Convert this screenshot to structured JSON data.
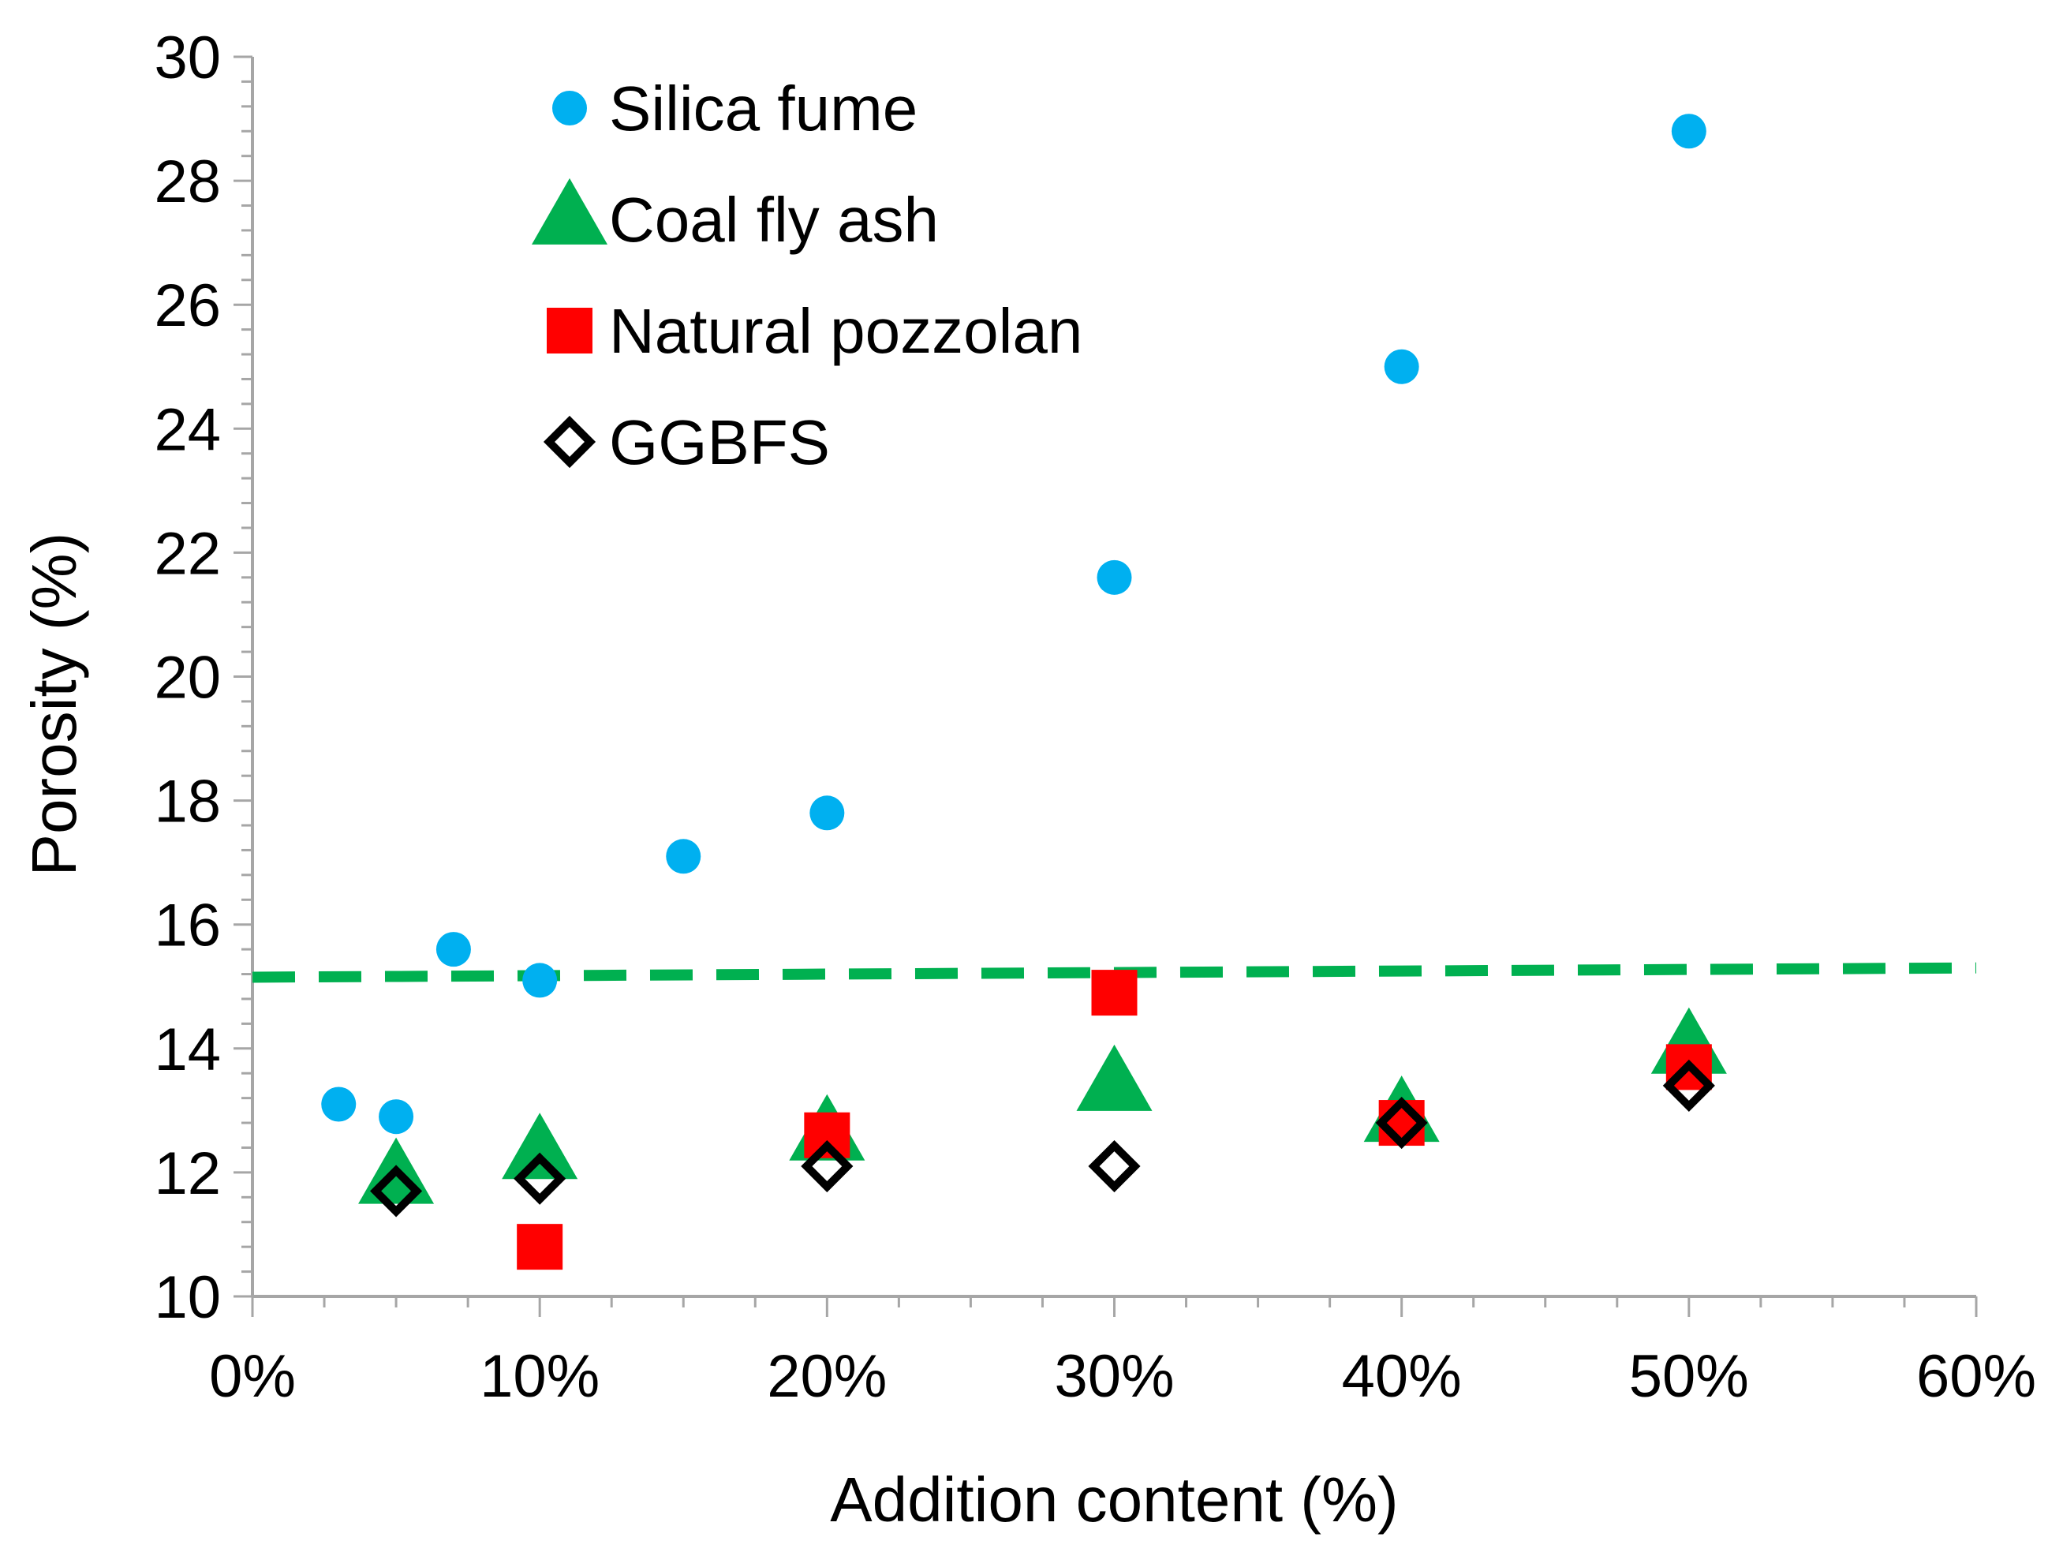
{
  "chart_data": {
    "type": "scatter",
    "title": "",
    "xlabel": "Addition content (%)",
    "ylabel": "Porosity (%)",
    "xlim": [
      0,
      60
    ],
    "ylim": [
      10,
      30
    ],
    "x_ticks": [
      0,
      10,
      20,
      30,
      40,
      50,
      60
    ],
    "x_tick_labels": [
      "0%",
      "10%",
      "20%",
      "30%",
      "40%",
      "50%",
      "60%"
    ],
    "y_ticks": [
      10,
      12,
      14,
      16,
      18,
      20,
      22,
      24,
      26,
      28,
      30
    ],
    "y_tick_labels": [
      "10",
      "12",
      "14",
      "16",
      "18",
      "20",
      "22",
      "24",
      "26",
      "28",
      "30"
    ],
    "grid": false,
    "legend_position": "top-left",
    "series": [
      {
        "name": "Silica fume",
        "marker": "circle",
        "color": "#00B0F0",
        "points": [
          {
            "x": 3,
            "y": 13.1
          },
          {
            "x": 5,
            "y": 12.9
          },
          {
            "x": 7,
            "y": 15.6
          },
          {
            "x": 10,
            "y": 15.1
          },
          {
            "x": 15,
            "y": 17.1
          },
          {
            "x": 20,
            "y": 17.8
          },
          {
            "x": 30,
            "y": 21.6
          },
          {
            "x": 40,
            "y": 25.0
          },
          {
            "x": 50,
            "y": 28.8
          }
        ]
      },
      {
        "name": "Coal fly ash",
        "marker": "triangle",
        "color": "#00B050",
        "points": [
          {
            "x": 5,
            "y": 11.9
          },
          {
            "x": 10,
            "y": 12.3
          },
          {
            "x": 20,
            "y": 12.6
          },
          {
            "x": 30,
            "y": 13.4
          },
          {
            "x": 40,
            "y": 12.9
          },
          {
            "x": 50,
            "y": 14.0
          }
        ]
      },
      {
        "name": "Natural pozzolan",
        "marker": "square",
        "color": "#FF0000",
        "points": [
          {
            "x": 10,
            "y": 10.8
          },
          {
            "x": 20,
            "y": 12.6
          },
          {
            "x": 30,
            "y": 14.9
          },
          {
            "x": 40,
            "y": 12.8
          },
          {
            "x": 50,
            "y": 13.7
          }
        ]
      },
      {
        "name": "GGBFS",
        "marker": "diamond",
        "color": "#000000",
        "points": [
          {
            "x": 5,
            "y": 11.7
          },
          {
            "x": 10,
            "y": 11.9
          },
          {
            "x": 20,
            "y": 12.1
          },
          {
            "x": 30,
            "y": 12.1
          },
          {
            "x": 40,
            "y": 12.8
          },
          {
            "x": 50,
            "y": 13.4
          }
        ]
      }
    ],
    "reference_line": {
      "style": "dashed",
      "color": "#00B050",
      "x": [
        0,
        60
      ],
      "y": [
        15.15,
        15.3
      ]
    }
  }
}
